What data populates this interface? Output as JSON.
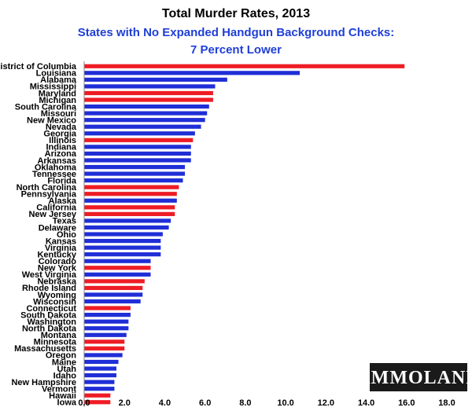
{
  "chart_data": {
    "type": "bar",
    "orientation": "horizontal",
    "title": "Total Murder Rates, 2013",
    "subtitle_lines": [
      "States with No Expanded Handgun Background Checks:",
      "7 Percent Lower"
    ],
    "categories": [
      "District of Columbia",
      "Louisiana",
      "Alabama",
      "Mississippi",
      "Maryland",
      "Michigan",
      "South Carolina",
      "Missouri",
      "New Mexico",
      "Nevada",
      "Georgia",
      "Illinois",
      "Indiana",
      "Arizona",
      "Arkansas",
      "Oklahoma",
      "Tennessee",
      "Florida",
      "North Carolina",
      "Pennsylvania",
      "Alaska",
      "California",
      "New Jersey",
      "Texas",
      "Delaware",
      "Ohio",
      "Kansas",
      "Virginia",
      "Kentucky",
      "Colorado",
      "New York",
      "West Virginia",
      "Nebraska",
      "Rhode Island",
      "Wyoming",
      "Wisconsin",
      "Connecticut",
      "South Dakota",
      "Washington",
      "North Dakota",
      "Montana",
      "Minnesota",
      "Massachusetts",
      "Oregon",
      "Maine",
      "Utah",
      "Idaho",
      "New Hampshire",
      "Vermont",
      "Hawaii",
      "Iowa"
    ],
    "values": [
      15.9,
      10.7,
      7.1,
      6.5,
      6.4,
      6.4,
      6.2,
      6.1,
      6.0,
      5.8,
      5.5,
      5.4,
      5.3,
      5.3,
      5.3,
      5.0,
      5.0,
      4.9,
      4.7,
      4.6,
      4.6,
      4.5,
      4.5,
      4.3,
      4.2,
      3.9,
      3.8,
      3.8,
      3.8,
      3.3,
      3.3,
      3.3,
      3.0,
      2.9,
      2.9,
      2.8,
      2.3,
      2.3,
      2.2,
      2.2,
      2.1,
      2.0,
      2.0,
      1.9,
      1.7,
      1.6,
      1.6,
      1.5,
      1.5,
      1.3,
      1.3
    ],
    "expanded_checks": [
      true,
      false,
      false,
      false,
      true,
      true,
      false,
      false,
      false,
      false,
      false,
      true,
      false,
      false,
      false,
      false,
      false,
      false,
      true,
      true,
      false,
      true,
      true,
      false,
      false,
      false,
      false,
      false,
      false,
      false,
      true,
      false,
      true,
      true,
      false,
      false,
      true,
      false,
      false,
      false,
      false,
      true,
      true,
      false,
      false,
      false,
      false,
      false,
      false,
      true,
      true
    ],
    "xlim": [
      0,
      18
    ],
    "xticks": [
      "0.0",
      "2.0",
      "4.0",
      "6.0",
      "8.0",
      "10.0",
      "12.0",
      "14.0",
      "16.0",
      "18.0"
    ],
    "xtick_values": [
      0,
      2,
      4,
      6,
      8,
      10,
      12,
      14,
      16,
      18
    ],
    "colors": {
      "expanded": "#ee1c25",
      "not_expanded": "#1f2ed6"
    },
    "grid": false,
    "legend": "none"
  },
  "watermark": {
    "text": "AMMOLAND",
    "background": "#1a1a1a"
  }
}
